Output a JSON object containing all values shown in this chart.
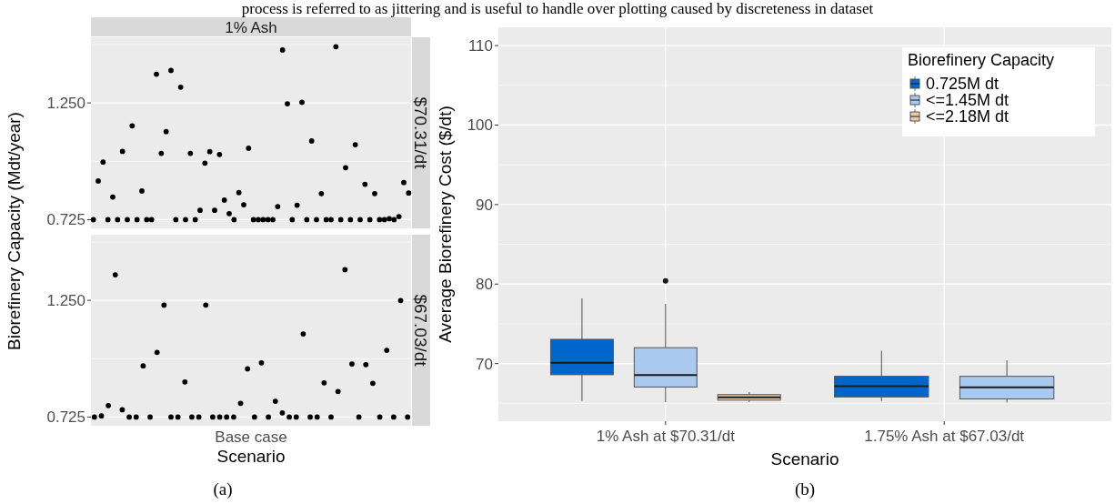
{
  "chart_data": [
    {
      "type": "scatter",
      "title": "1% Ash",
      "y2label": "$70.31/dt",
      "ylabel": "Biorefinery Capacity (Mdt/year)",
      "annotations": [
        "process is referred to as jittering and is useful to handle over plotting caused by discreteness in dataset"
      ],
      "color": "#000000",
      "marker": "circle",
      "grid": "y",
      "tick_labels": "y",
      "ylim": [
        0.686,
        1.545
      ],
      "yticks": [
        {
          "value": 0.725,
          "label": "0.725"
        },
        {
          "value": 0.9875,
          "label": null
        },
        {
          "value": 1.25,
          "label": "1.250"
        },
        {
          "value": 1.5125,
          "label": null
        }
      ],
      "categories": [
        null,
        null,
        null,
        null,
        null,
        null,
        null,
        null,
        null,
        null,
        null,
        null,
        null,
        null,
        null,
        null,
        null,
        null,
        null,
        null,
        null,
        null,
        null,
        null,
        null,
        null,
        null,
        null,
        null,
        null,
        null,
        null,
        null,
        null,
        null,
        null,
        null,
        null,
        null,
        null,
        null,
        null,
        null,
        null,
        null,
        null,
        null,
        null,
        null,
        null,
        null,
        null,
        null,
        null,
        null,
        null,
        null,
        null,
        null,
        null,
        null,
        null,
        null,
        null,
        null,
        null
      ],
      "values": [
        0.725,
        0.899,
        0.984,
        0.725,
        0.827,
        0.725,
        1.032,
        0.725,
        1.147,
        0.725,
        0.854,
        0.725,
        0.725,
        1.379,
        1.023,
        1.121,
        1.396,
        0.725,
        1.321,
        0.725,
        1.023,
        0.725,
        0.767,
        0.979,
        1.031,
        0.767,
        1.018,
        0.813,
        0.752,
        0.725,
        0.847,
        0.792,
        1.046,
        0.725,
        0.725,
        0.725,
        0.725,
        0.725,
        0.784,
        1.488,
        1.246,
        0.725,
        0.79,
        1.253,
        0.725,
        1.079,
        0.725,
        0.842,
        0.725,
        0.725,
        1.503,
        0.725,
        0.959,
        0.725,
        1.062,
        0.725,
        0.884,
        0.725,
        0.842,
        0.725,
        0.725,
        0.729,
        0.725,
        0.739,
        0.892,
        0.845
      ]
    },
    {
      "type": "scatter",
      "y2label": "$67.03/dt",
      "xlabel": "Scenario",
      "annotations": [
        "Base case",
        "(a)"
      ],
      "color": "#000000",
      "marker": "circle",
      "grid": "y",
      "tick_labels": "y",
      "ylim": [
        0.686,
        1.545
      ],
      "yticks": [
        {
          "value": 0.725,
          "label": "0.725"
        },
        {
          "value": 0.9875,
          "label": null
        },
        {
          "value": 1.25,
          "label": "1.250"
        },
        {
          "value": 1.5125,
          "label": null
        }
      ],
      "categories": [
        null,
        null,
        null,
        null,
        null,
        null,
        null,
        null,
        null,
        null,
        null,
        null,
        null,
        null,
        null,
        null,
        null,
        null,
        null,
        null,
        null,
        null,
        null,
        null,
        null,
        null,
        null,
        null,
        null,
        null,
        null,
        null,
        null,
        null,
        null,
        null,
        null,
        null,
        null,
        null,
        null,
        null,
        null,
        null,
        null,
        null
      ],
      "values": [
        0.725,
        0.73,
        0.777,
        1.365,
        0.758,
        0.725,
        0.725,
        0.955,
        0.725,
        1.016,
        1.228,
        0.725,
        0.725,
        0.883,
        0.725,
        0.725,
        1.229,
        0.725,
        0.725,
        0.725,
        0.725,
        0.787,
        0.942,
        0.725,
        0.969,
        0.725,
        0.796,
        0.744,
        0.725,
        0.725,
        1.099,
        0.725,
        0.725,
        0.879,
        0.725,
        0.84,
        1.388,
        0.964,
        0.725,
        0.961,
        0.877,
        0.725,
        1.025,
        0.725,
        1.249,
        0.725
      ]
    },
    {
      "type": "box",
      "ylabel": "Average Biorefinery Cost ($/dt)",
      "xlabel": "Scenario",
      "annotations": [
        "(b)"
      ],
      "legend_title": "Biorefinery Capacity",
      "legend": "top right",
      "grid": true,
      "categories": [
        "1% Ash at $70.31/dt",
        "1.75% Ash at $67.03/dt"
      ],
      "ylim": [
        62.75,
        112.3
      ],
      "yticks": [
        {
          "value": 65,
          "label": null
        },
        70,
        {
          "value": 75,
          "label": null
        },
        80,
        {
          "value": 85,
          "label": null
        },
        90,
        {
          "value": 95,
          "label": null
        },
        100,
        {
          "value": 105,
          "label": null
        },
        110
      ],
      "series": [
        {
          "name": "0.725M dt",
          "color": "#0066cc",
          "boxes": [
            {
              "low": 65.3,
              "q1": 68.6,
              "median": 70.1,
              "q3": 73.05,
              "high": 78.2
            },
            {
              "low": 65.3,
              "q1": 65.8,
              "median": 67.15,
              "q3": 68.4,
              "high": 71.6
            }
          ]
        },
        {
          "name": "<=1.45M dt",
          "color": "#a9caee",
          "boxes": [
            {
              "low": 65.15,
              "q1": 67.05,
              "median": 68.55,
              "q3": 72.0,
              "high": 77.5,
              "outliers": [
                80.4
              ]
            },
            {
              "low": 65.1,
              "q1": 65.55,
              "median": 67.0,
              "q3": 68.4,
              "high": 70.4
            }
          ]
        },
        {
          "name": "<=2.18M dt",
          "color": "#e8cba6",
          "boxes": [
            {
              "low": 65.15,
              "q1": 65.4,
              "median": 65.75,
              "q3": 66.1,
              "high": 66.4
            },
            null
          ]
        }
      ]
    }
  ]
}
